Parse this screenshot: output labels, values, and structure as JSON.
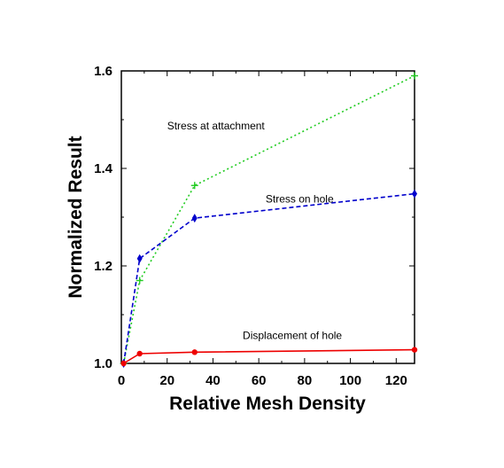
{
  "chart_data": {
    "type": "line",
    "title": "",
    "xlabel": "Relative Mesh Density",
    "ylabel": "Normalized Result",
    "xlim": [
      0,
      128
    ],
    "ylim": [
      1.0,
      1.6
    ],
    "x_ticks": [
      0,
      20,
      40,
      60,
      80,
      100,
      120
    ],
    "y_ticks": [
      1.0,
      1.2,
      1.4,
      1.6
    ],
    "grid": false,
    "legend": "none",
    "series": [
      {
        "name": "Stress at attachment",
        "color": "#22cc22",
        "line_style": "dotted",
        "marker": "plus",
        "x": [
          1,
          8,
          32,
          128
        ],
        "y": [
          1.0,
          1.17,
          1.365,
          1.59
        ]
      },
      {
        "name": "Stress on hole",
        "color": "#0000cc",
        "line_style": "dashed",
        "marker": "diamond",
        "x": [
          1,
          8,
          32,
          128
        ],
        "y": [
          1.0,
          1.215,
          1.298,
          1.348
        ]
      },
      {
        "name": "Displacement of hole",
        "color": "#ee0000",
        "line_style": "solid",
        "marker": "dot",
        "x": [
          1,
          8,
          32,
          128
        ],
        "y": [
          1.0,
          1.02,
          1.023,
          1.028
        ]
      }
    ],
    "annotations": [
      {
        "text": "Stress at attachment",
        "x": 20,
        "y": 1.48
      },
      {
        "text": "Stress on hole",
        "x": 63,
        "y": 1.33
      },
      {
        "text": "Displacement of hole",
        "x": 53,
        "y": 1.05
      }
    ]
  }
}
